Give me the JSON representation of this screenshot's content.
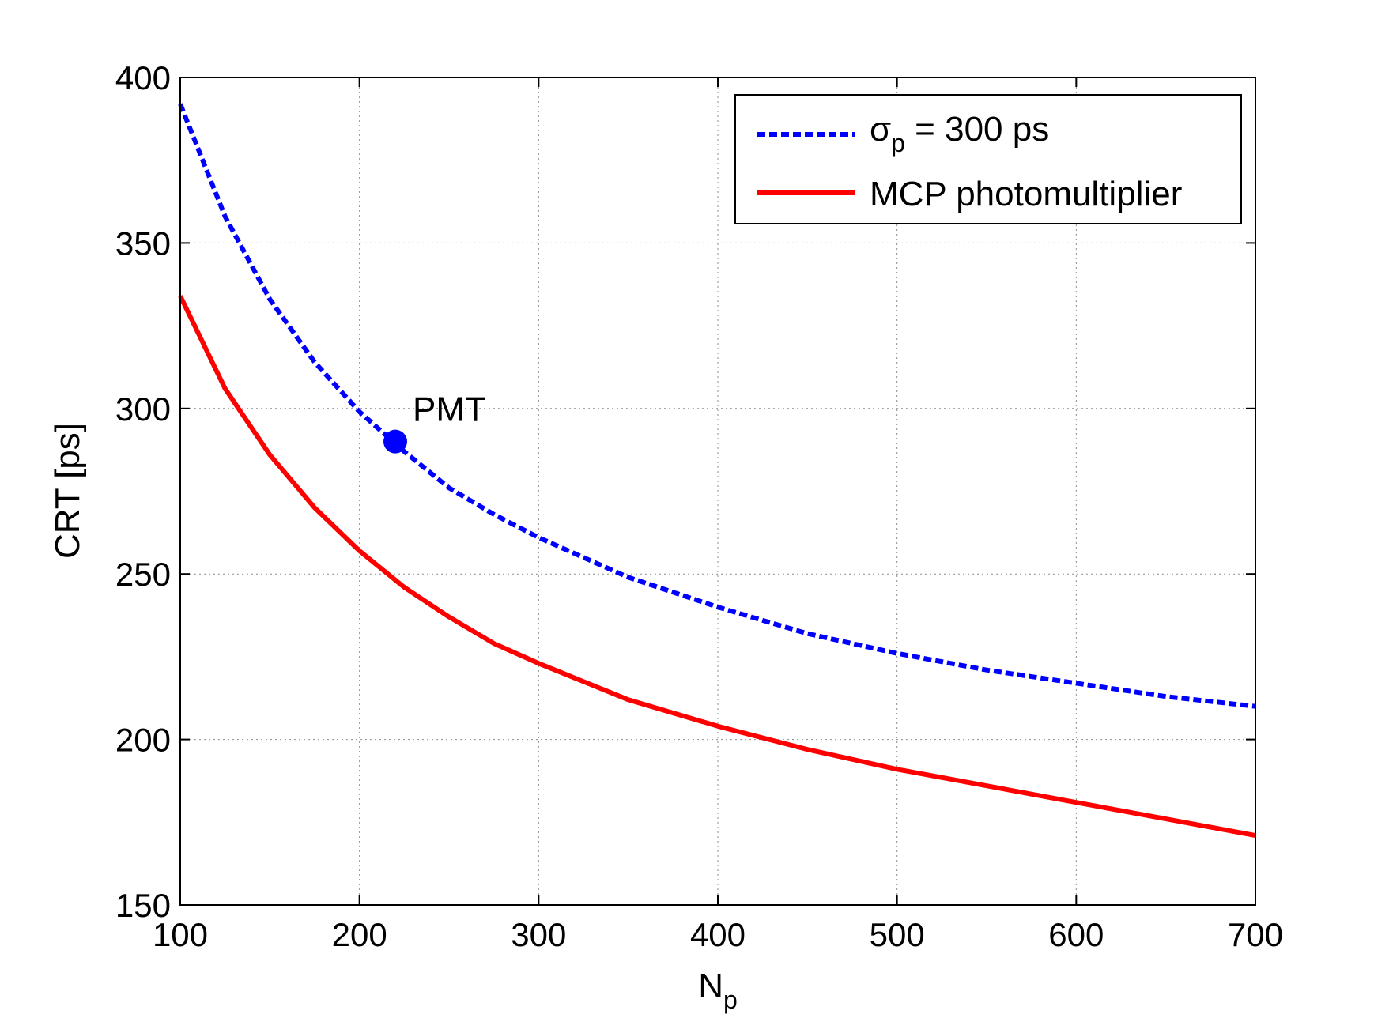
{
  "chart_data": {
    "type": "line",
    "title": "",
    "xlabel": {
      "main": "N",
      "sub": "p"
    },
    "ylabel": "CRT [ps]",
    "xlim": [
      100,
      700
    ],
    "ylim": [
      150,
      400
    ],
    "xticks": [
      100,
      200,
      300,
      400,
      500,
      600,
      700
    ],
    "yticks": [
      150,
      200,
      250,
      300,
      350,
      400
    ],
    "grid": true,
    "legend_position": "top-right",
    "series": [
      {
        "name": "σp = 300 ps",
        "legend": {
          "main": "σ",
          "sub": "p",
          "rest": " = 300 ps"
        },
        "color": "#0000ff",
        "style": "dashed",
        "x": [
          100,
          125,
          150,
          175,
          200,
          225,
          250,
          275,
          300,
          350,
          400,
          450,
          500,
          550,
          600,
          650,
          700
        ],
        "y": [
          392,
          358,
          333,
          314,
          299,
          287,
          276,
          268,
          261,
          249,
          240,
          232,
          226,
          221,
          217,
          213,
          210
        ]
      },
      {
        "name": "MCP photomultiplier",
        "legend": {
          "main": "MCP photomultiplier",
          "sub": "",
          "rest": ""
        },
        "color": "#ff0000",
        "style": "solid",
        "x": [
          100,
          125,
          150,
          175,
          200,
          225,
          250,
          275,
          300,
          350,
          400,
          450,
          500,
          550,
          600,
          650,
          700
        ],
        "y": [
          334,
          306,
          286,
          270,
          257,
          246,
          237,
          229,
          223,
          212,
          204,
          197,
          191,
          186,
          181,
          176,
          171
        ]
      }
    ],
    "annotations": [
      {
        "text": "PMT",
        "x": 220,
        "y": 290,
        "marker_color": "#0000ff"
      }
    ]
  }
}
